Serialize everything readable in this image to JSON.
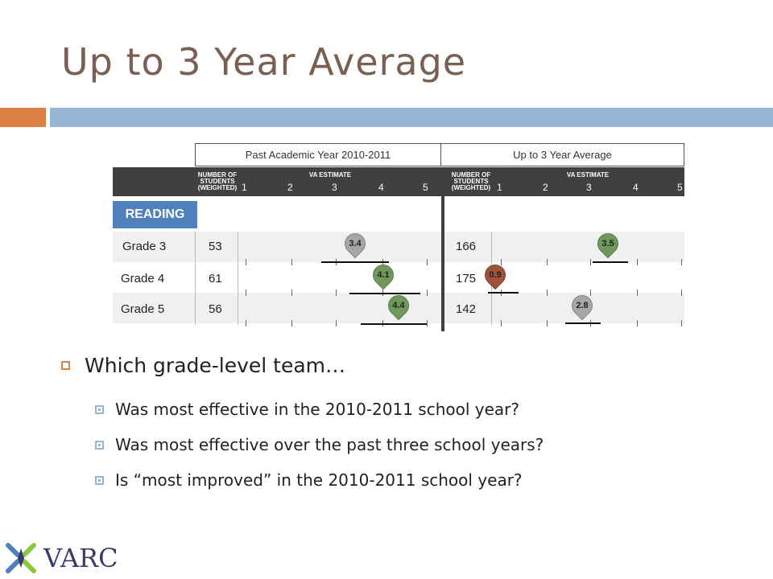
{
  "title": "Up to 3 Year Average",
  "table": {
    "header_left": "Past Academic Year 2010-2011",
    "header_right": "Up to 3 Year Average",
    "col_students": "NUMBER OF STUDENTS (WEIGHTED)",
    "col_va": "VA ESTIMATE",
    "scale_ticks": [
      "1",
      "2",
      "3",
      "4",
      "5"
    ],
    "subject": "READING",
    "rows": [
      {
        "grade": "Grade 3",
        "past_n": "53",
        "past_va": "3.4",
        "past_color": "#a6a6a6",
        "avg_n": "166",
        "avg_va": "3.5",
        "avg_color": "#70985a"
      },
      {
        "grade": "Grade 4",
        "past_n": "61",
        "past_va": "4.1",
        "past_color": "#70985a",
        "avg_n": "175",
        "avg_va": "0.9",
        "avg_color": "#a0523d"
      },
      {
        "grade": "Grade 5",
        "past_n": "56",
        "past_va": "4.4",
        "past_color": "#70985a",
        "avg_n": "142",
        "avg_va": "2.8",
        "avg_color": "#a6a6a6"
      }
    ]
  },
  "bullets": {
    "main": "Which grade-level team…",
    "sub": [
      "Was most effective in the 2010-2011 school year?",
      "Was most effective over the past three school years?",
      "Is “most improved” in the 2010-2011 school year?"
    ]
  },
  "logo": {
    "text": "VARC",
    "icon": "varc-logo-icon"
  }
}
